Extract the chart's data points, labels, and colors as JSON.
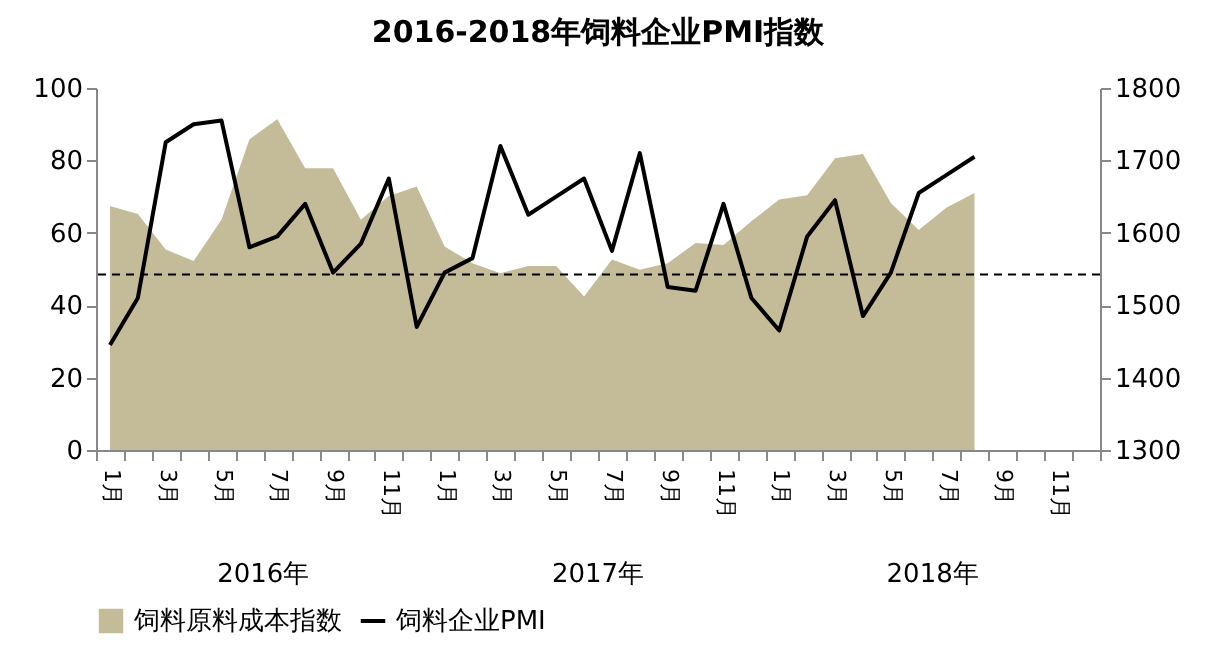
{
  "chart_data": {
    "type": "line",
    "title": "2016-2018年饲料企业PMI指数",
    "categories": [
      "1月",
      null,
      "3月",
      null,
      "5月",
      null,
      "7月",
      null,
      "9月",
      null,
      "11月",
      null,
      "1月",
      null,
      "3月",
      null,
      "5月",
      null,
      "7月",
      null,
      "9月",
      null,
      "11月",
      null,
      "1月",
      null,
      "3月",
      null,
      "5月",
      null,
      "7月",
      null,
      "9月",
      null,
      "11月",
      null
    ],
    "series": [
      {
        "name": "饲料原料成本指数",
        "type": "area",
        "axis": "y2",
        "color": "#c4bc98",
        "values": [
          1637,
          1626,
          1577,
          1561,
          1618,
          1729,
          1757,
          1689,
          1689,
          1618,
          1651,
          1664,
          1581,
          1558,
          1544,
          1554,
          1554,
          1512,
          1563,
          1549,
          1558,
          1586,
          1583,
          1616,
          1646,
          1652,
          1703,
          1709,
          1641,
          1604,
          1635,
          1655,
          null,
          null,
          null,
          null
        ]
      },
      {
        "name": "饲料企业PMI",
        "color": "#000000",
        "values": [
          29,
          42,
          85,
          90,
          91,
          56,
          59,
          68,
          49,
          57,
          75,
          34,
          49,
          53,
          84,
          65,
          70,
          75,
          55,
          82,
          45,
          44,
          68,
          42,
          33,
          59,
          69,
          37,
          49,
          71,
          76,
          81,
          null,
          null,
          null,
          null
        ]
      }
    ],
    "ylim": [
      0,
      100
    ],
    "yticks": [
      0,
      20,
      40,
      60,
      80,
      100
    ],
    "y2lim": [
      1300,
      1800
    ],
    "y2ticks": [
      1300,
      1400,
      1500,
      1600,
      1700,
      1800
    ],
    "ref_lines": [
      {
        "axis": "y",
        "value": 48.5,
        "color": "#000000",
        "line_style": "dashed"
      }
    ],
    "annotations": [
      "2016年",
      "2017年",
      "2018年"
    ],
    "grid": false,
    "legend": "bottom"
  }
}
